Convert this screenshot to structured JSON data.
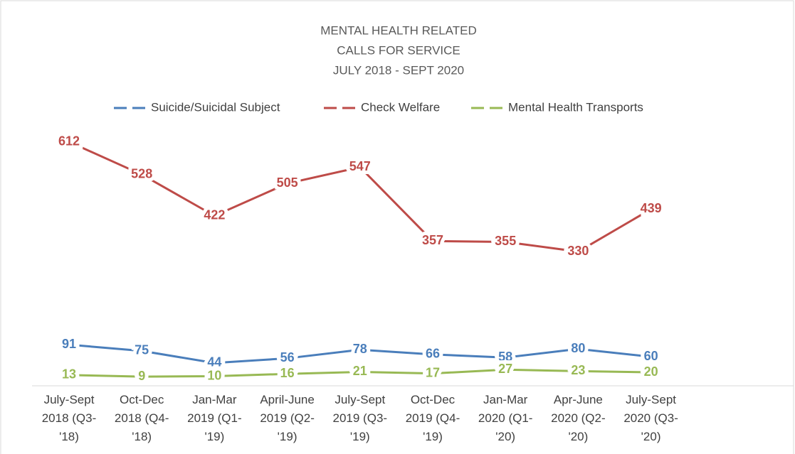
{
  "chart_data": {
    "type": "line",
    "title": [
      "MENTAL HEALTH RELATED",
      "CALLS FOR SERVICE",
      "JULY 2018 - SEPT 2020"
    ],
    "categories": [
      "July-Sept 2018 (Q3-'18)",
      "Oct-Dec 2018 (Q4-'18)",
      "Jan-Mar 2019 (Q1-'19)",
      "April-June 2019 (Q2-'19)",
      "July-Sept 2019 (Q3-'19)",
      "Oct-Dec 2019 (Q4-'19)",
      "Jan-Mar 2020 (Q1-'20)",
      "Apr-June 2020 (Q2-'20)",
      "July-Sept 2020 (Q3-'20)"
    ],
    "series": [
      {
        "name": "Suicide/Suicidal Subject",
        "color": "#4a7ebb",
        "values": [
          91,
          75,
          44,
          56,
          78,
          66,
          58,
          80,
          60
        ]
      },
      {
        "name": "Check Welfare",
        "color": "#be4b48",
        "values": [
          612,
          528,
          422,
          505,
          547,
          357,
          355,
          330,
          439
        ]
      },
      {
        "name": "Mental Health Transports",
        "color": "#98b954",
        "values": [
          13,
          9,
          10,
          16,
          21,
          17,
          27,
          23,
          20
        ]
      }
    ],
    "legend": "top"
  }
}
